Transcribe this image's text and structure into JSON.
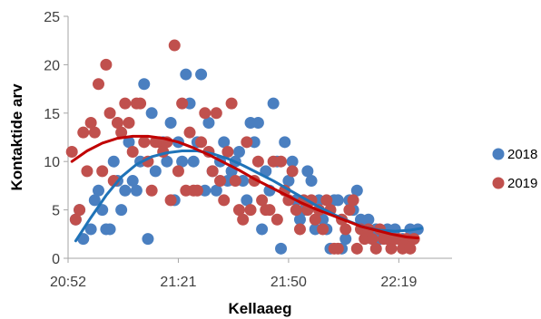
{
  "chart_data": {
    "type": "scatter",
    "xlabel": "Kellaaeg",
    "ylabel": "Kontaktide arv",
    "x_ticks": [
      "20:52",
      "21:21",
      "21:50",
      "22:19"
    ],
    "x_range": [
      "20:52",
      "22:33"
    ],
    "y_ticks": [
      "0",
      "5",
      "10",
      "15",
      "20",
      "25"
    ],
    "ylim": [
      0,
      25
    ],
    "grid": false,
    "legend_position": "right",
    "series": [
      {
        "name": "2018",
        "color": "#4a7fc0",
        "trend_color": "#1f73b8",
        "points": [
          [
            "20:54",
            4
          ],
          [
            "20:55",
            5
          ],
          [
            "20:56",
            2
          ],
          [
            "20:58",
            3
          ],
          [
            "20:59",
            6
          ],
          [
            "21:00",
            7
          ],
          [
            "21:01",
            5
          ],
          [
            "21:02",
            3
          ],
          [
            "21:03",
            3
          ],
          [
            "21:04",
            10
          ],
          [
            "21:05",
            8
          ],
          [
            "21:06",
            5
          ],
          [
            "21:07",
            7
          ],
          [
            "21:08",
            12
          ],
          [
            "21:09",
            8
          ],
          [
            "21:10",
            7
          ],
          [
            "21:11",
            10
          ],
          [
            "21:12",
            18
          ],
          [
            "21:13",
            2
          ],
          [
            "21:14",
            15
          ],
          [
            "21:15",
            9
          ],
          [
            "21:17",
            12
          ],
          [
            "21:18",
            10
          ],
          [
            "21:19",
            14
          ],
          [
            "21:20",
            6
          ],
          [
            "21:21",
            12
          ],
          [
            "21:22",
            10
          ],
          [
            "21:23",
            19
          ],
          [
            "21:24",
            16
          ],
          [
            "21:25",
            10
          ],
          [
            "21:26",
            12
          ],
          [
            "21:27",
            19
          ],
          [
            "21:28",
            7
          ],
          [
            "21:29",
            14
          ],
          [
            "21:30",
            9
          ],
          [
            "21:31",
            7
          ],
          [
            "21:32",
            10
          ],
          [
            "21:33",
            12
          ],
          [
            "21:34",
            8
          ],
          [
            "21:35",
            9
          ],
          [
            "21:36",
            10
          ],
          [
            "21:37",
            11
          ],
          [
            "21:38",
            8
          ],
          [
            "21:39",
            6
          ],
          [
            "21:40",
            14
          ],
          [
            "21:41",
            12
          ],
          [
            "21:42",
            14
          ],
          [
            "21:43",
            3
          ],
          [
            "21:44",
            9
          ],
          [
            "21:45",
            7
          ],
          [
            "21:46",
            16
          ],
          [
            "21:47",
            10
          ],
          [
            "21:48",
            1
          ],
          [
            "21:49",
            12
          ],
          [
            "21:50",
            8
          ],
          [
            "21:51",
            10
          ],
          [
            "21:52",
            6
          ],
          [
            "21:53",
            4
          ],
          [
            "21:54",
            5
          ],
          [
            "21:55",
            9
          ],
          [
            "21:56",
            8
          ],
          [
            "21:57",
            3
          ],
          [
            "21:58",
            6
          ],
          [
            "21:59",
            4
          ],
          [
            "22:00",
            3
          ],
          [
            "22:01",
            1
          ],
          [
            "22:02",
            6
          ],
          [
            "22:03",
            6
          ],
          [
            "22:04",
            1
          ],
          [
            "22:05",
            2
          ],
          [
            "22:06",
            6
          ],
          [
            "22:07",
            5
          ],
          [
            "22:08",
            7
          ],
          [
            "22:09",
            4
          ],
          [
            "22:10",
            3
          ],
          [
            "22:11",
            4
          ],
          [
            "22:12",
            2
          ],
          [
            "22:13",
            3
          ],
          [
            "22:14",
            2
          ],
          [
            "22:16",
            3
          ],
          [
            "22:18",
            3
          ],
          [
            "22:20",
            2
          ],
          [
            "22:22",
            3
          ],
          [
            "22:24",
            3
          ]
        ]
      },
      {
        "name": "2019",
        "color": "#c0504d",
        "trend_color": "#c00000",
        "points": [
          [
            "20:53",
            11
          ],
          [
            "20:54",
            4
          ],
          [
            "20:55",
            5
          ],
          [
            "20:56",
            13
          ],
          [
            "20:57",
            9
          ],
          [
            "20:58",
            14
          ],
          [
            "20:59",
            13
          ],
          [
            "21:00",
            18
          ],
          [
            "21:01",
            9
          ],
          [
            "21:02",
            20
          ],
          [
            "21:03",
            15
          ],
          [
            "21:04",
            8
          ],
          [
            "21:05",
            14
          ],
          [
            "21:06",
            13
          ],
          [
            "21:07",
            16
          ],
          [
            "21:08",
            14
          ],
          [
            "21:09",
            11
          ],
          [
            "21:10",
            16
          ],
          [
            "21:11",
            16
          ],
          [
            "21:12",
            12
          ],
          [
            "21:13",
            10
          ],
          [
            "21:14",
            7
          ],
          [
            "21:15",
            12
          ],
          [
            "21:16",
            12
          ],
          [
            "21:17",
            11
          ],
          [
            "21:18",
            12
          ],
          [
            "21:19",
            6
          ],
          [
            "21:20",
            22
          ],
          [
            "21:21",
            9
          ],
          [
            "21:22",
            16
          ],
          [
            "21:23",
            7
          ],
          [
            "21:24",
            13
          ],
          [
            "21:25",
            7
          ],
          [
            "21:26",
            7
          ],
          [
            "21:27",
            12
          ],
          [
            "21:28",
            15
          ],
          [
            "21:29",
            11
          ],
          [
            "21:30",
            9
          ],
          [
            "21:31",
            15
          ],
          [
            "21:32",
            8
          ],
          [
            "21:33",
            6
          ],
          [
            "21:34",
            11
          ],
          [
            "21:35",
            16
          ],
          [
            "21:36",
            8
          ],
          [
            "21:37",
            5
          ],
          [
            "21:38",
            4
          ],
          [
            "21:39",
            12
          ],
          [
            "21:40",
            5
          ],
          [
            "21:41",
            8
          ],
          [
            "21:42",
            10
          ],
          [
            "21:43",
            6
          ],
          [
            "21:44",
            5
          ],
          [
            "21:45",
            5
          ],
          [
            "21:46",
            10
          ],
          [
            "21:47",
            4
          ],
          [
            "21:48",
            10
          ],
          [
            "21:49",
            7
          ],
          [
            "21:50",
            6
          ],
          [
            "21:51",
            9
          ],
          [
            "21:52",
            5
          ],
          [
            "21:53",
            3
          ],
          [
            "21:54",
            6
          ],
          [
            "21:55",
            5
          ],
          [
            "21:56",
            6
          ],
          [
            "21:57",
            4
          ],
          [
            "21:58",
            5
          ],
          [
            "21:59",
            3
          ],
          [
            "22:00",
            6
          ],
          [
            "22:01",
            5
          ],
          [
            "22:02",
            1
          ],
          [
            "22:03",
            1
          ],
          [
            "22:04",
            4
          ],
          [
            "22:05",
            3
          ],
          [
            "22:06",
            5
          ],
          [
            "22:07",
            6
          ],
          [
            "22:08",
            1
          ],
          [
            "22:09",
            3
          ],
          [
            "22:10",
            2
          ],
          [
            "22:11",
            3
          ],
          [
            "22:12",
            2
          ],
          [
            "22:13",
            1
          ],
          [
            "22:14",
            3
          ],
          [
            "22:15",
            2
          ],
          [
            "22:16",
            2
          ],
          [
            "22:17",
            1
          ],
          [
            "22:18",
            2
          ],
          [
            "22:19",
            2
          ],
          [
            "22:20",
            1
          ],
          [
            "22:21",
            2
          ],
          [
            "22:22",
            1
          ],
          [
            "22:23",
            2
          ]
        ]
      }
    ],
    "trendlines": [
      {
        "series": "2018",
        "points": [
          [
            "20:54",
            1.8
          ],
          [
            "20:58",
            4.2
          ],
          [
            "21:02",
            6.5
          ],
          [
            "21:06",
            8.4
          ],
          [
            "21:10",
            9.7
          ],
          [
            "21:14",
            10.5
          ],
          [
            "21:18",
            10.9
          ],
          [
            "21:22",
            11.1
          ],
          [
            "21:26",
            11.1
          ],
          [
            "21:30",
            10.8
          ],
          [
            "21:34",
            10.3
          ],
          [
            "21:38",
            9.6
          ],
          [
            "21:42",
            8.8
          ],
          [
            "21:46",
            8.0
          ],
          [
            "21:50",
            7.1
          ],
          [
            "21:54",
            6.2
          ],
          [
            "21:58",
            5.3
          ],
          [
            "22:02",
            4.5
          ],
          [
            "22:06",
            3.8
          ],
          [
            "22:10",
            3.2
          ],
          [
            "22:14",
            2.9
          ],
          [
            "22:18",
            2.8
          ],
          [
            "22:22",
            2.9
          ],
          [
            "22:25",
            3.1
          ]
        ]
      },
      {
        "series": "2019",
        "points": [
          [
            "20:53",
            10.0
          ],
          [
            "20:57",
            11.1
          ],
          [
            "21:01",
            11.9
          ],
          [
            "21:05",
            12.4
          ],
          [
            "21:09",
            12.6
          ],
          [
            "21:13",
            12.6
          ],
          [
            "21:17",
            12.4
          ],
          [
            "21:21",
            12.0
          ],
          [
            "21:25",
            11.4
          ],
          [
            "21:29",
            10.7
          ],
          [
            "21:33",
            9.9
          ],
          [
            "21:37",
            9.1
          ],
          [
            "21:41",
            8.2
          ],
          [
            "21:45",
            7.4
          ],
          [
            "21:49",
            6.6
          ],
          [
            "21:53",
            5.8
          ],
          [
            "21:57",
            5.1
          ],
          [
            "22:01",
            4.5
          ],
          [
            "22:05",
            3.9
          ],
          [
            "22:09",
            3.3
          ],
          [
            "22:13",
            2.9
          ],
          [
            "22:17",
            2.5
          ],
          [
            "22:21",
            2.2
          ],
          [
            "22:24",
            2.1
          ]
        ]
      }
    ]
  }
}
